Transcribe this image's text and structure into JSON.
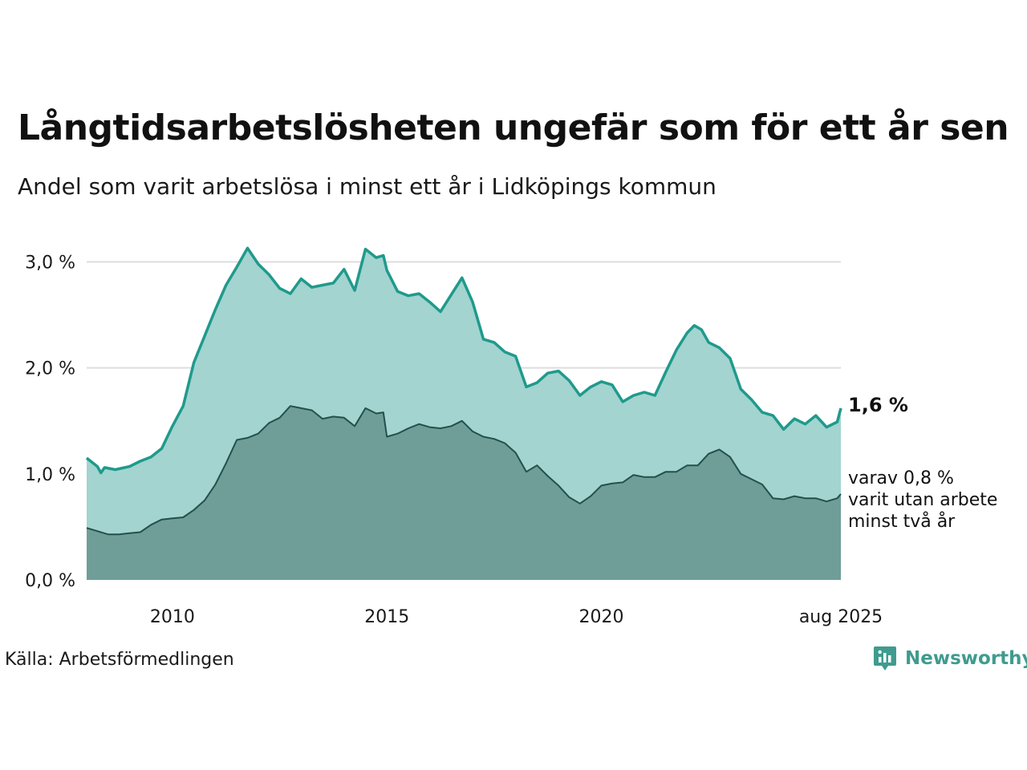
{
  "header": {
    "title": "Långtidsarbetslösheten ungefär som för ett år sen",
    "subtitle": "Andel som varit arbetslösa i minst ett år i Lidköpings kommun"
  },
  "footer": {
    "source": "Källa: Arbetsförmedlingen",
    "logo_text": "Newsworthy"
  },
  "colors": {
    "main_fill": "#a3d4cf",
    "main_line": "#1f9a8c",
    "sub_fill": "#6f9e98",
    "sub_line": "#24504b",
    "grid": "#dddddd",
    "logo": "#3f9b8f"
  },
  "chart_data": {
    "type": "area",
    "title": "Långtidsarbetslösheten ungefär som för ett år sen",
    "subtitle": "Andel som varit arbetslösa i minst ett år i Lidköpings kommun",
    "x_ticks": [
      "2010",
      "2015",
      "2020",
      "aug 2025"
    ],
    "y_ticks": [
      "0,0 %",
      "1,0 %",
      "2,0 %",
      "3,0 %"
    ],
    "ylim": [
      0,
      3.2
    ],
    "xlim": [
      "2008-01",
      "2025-08"
    ],
    "grid": true,
    "end_label_main": "1,6 %",
    "end_label_sub": [
      "varav 0,8 %",
      "varit utan arbete",
      "minst två år"
    ],
    "series": [
      {
        "key": "min_1_ar",
        "points": [
          [
            "2008-01",
            1.15
          ],
          [
            "2008-04",
            1.07
          ],
          [
            "2008-05",
            1.01
          ],
          [
            "2008-06",
            1.06
          ],
          [
            "2008-09",
            1.04
          ],
          [
            "2009-01",
            1.07
          ],
          [
            "2009-04",
            1.12
          ],
          [
            "2009-07",
            1.16
          ],
          [
            "2009-10",
            1.24
          ],
          [
            "2010-01",
            1.45
          ],
          [
            "2010-04",
            1.64
          ],
          [
            "2010-07",
            2.05
          ],
          [
            "2010-10",
            2.3
          ],
          [
            "2011-01",
            2.55
          ],
          [
            "2011-04",
            2.78
          ],
          [
            "2011-07",
            2.95
          ],
          [
            "2011-10",
            3.13
          ],
          [
            "2012-01",
            2.98
          ],
          [
            "2012-04",
            2.88
          ],
          [
            "2012-07",
            2.75
          ],
          [
            "2012-10",
            2.7
          ],
          [
            "2013-01",
            2.84
          ],
          [
            "2013-04",
            2.76
          ],
          [
            "2013-07",
            2.78
          ],
          [
            "2013-10",
            2.8
          ],
          [
            "2014-01",
            2.93
          ],
          [
            "2014-04",
            2.73
          ],
          [
            "2014-07",
            3.12
          ],
          [
            "2014-10",
            3.04
          ],
          [
            "2014-12",
            3.06
          ],
          [
            "2015-01",
            2.92
          ],
          [
            "2015-04",
            2.72
          ],
          [
            "2015-07",
            2.68
          ],
          [
            "2015-10",
            2.7
          ],
          [
            "2016-01",
            2.62
          ],
          [
            "2016-04",
            2.53
          ],
          [
            "2016-07",
            2.69
          ],
          [
            "2016-10",
            2.85
          ],
          [
            "2017-01",
            2.62
          ],
          [
            "2017-04",
            2.27
          ],
          [
            "2017-07",
            2.24
          ],
          [
            "2017-10",
            2.15
          ],
          [
            "2018-01",
            2.11
          ],
          [
            "2018-04",
            1.82
          ],
          [
            "2018-07",
            1.86
          ],
          [
            "2018-10",
            1.95
          ],
          [
            "2019-01",
            1.97
          ],
          [
            "2019-04",
            1.88
          ],
          [
            "2019-07",
            1.74
          ],
          [
            "2019-10",
            1.82
          ],
          [
            "2020-01",
            1.87
          ],
          [
            "2020-04",
            1.84
          ],
          [
            "2020-07",
            1.68
          ],
          [
            "2020-10",
            1.74
          ],
          [
            "2021-01",
            1.77
          ],
          [
            "2021-04",
            1.74
          ],
          [
            "2021-07",
            1.96
          ],
          [
            "2021-10",
            2.17
          ],
          [
            "2022-01",
            2.33
          ],
          [
            "2022-03",
            2.4
          ],
          [
            "2022-05",
            2.36
          ],
          [
            "2022-07",
            2.24
          ],
          [
            "2022-10",
            2.19
          ],
          [
            "2023-01",
            2.09
          ],
          [
            "2023-04",
            1.8
          ],
          [
            "2023-07",
            1.7
          ],
          [
            "2023-10",
            1.58
          ],
          [
            "2024-01",
            1.55
          ],
          [
            "2024-04",
            1.42
          ],
          [
            "2024-07",
            1.52
          ],
          [
            "2024-10",
            1.47
          ],
          [
            "2025-01",
            1.55
          ],
          [
            "2025-04",
            1.44
          ],
          [
            "2025-07",
            1.49
          ],
          [
            "2025-08",
            1.62
          ]
        ]
      },
      {
        "key": "min_2_ar",
        "points": [
          [
            "2008-01",
            0.49
          ],
          [
            "2008-04",
            0.46
          ],
          [
            "2008-07",
            0.43
          ],
          [
            "2008-10",
            0.43
          ],
          [
            "2009-01",
            0.44
          ],
          [
            "2009-04",
            0.45
          ],
          [
            "2009-07",
            0.52
          ],
          [
            "2009-10",
            0.57
          ],
          [
            "2010-01",
            0.58
          ],
          [
            "2010-04",
            0.59
          ],
          [
            "2010-07",
            0.66
          ],
          [
            "2010-10",
            0.75
          ],
          [
            "2011-01",
            0.9
          ],
          [
            "2011-04",
            1.1
          ],
          [
            "2011-07",
            1.32
          ],
          [
            "2011-10",
            1.34
          ],
          [
            "2012-01",
            1.38
          ],
          [
            "2012-04",
            1.48
          ],
          [
            "2012-07",
            1.53
          ],
          [
            "2012-10",
            1.64
          ],
          [
            "2013-01",
            1.62
          ],
          [
            "2013-04",
            1.6
          ],
          [
            "2013-07",
            1.52
          ],
          [
            "2013-10",
            1.54
          ],
          [
            "2014-01",
            1.53
          ],
          [
            "2014-04",
            1.45
          ],
          [
            "2014-07",
            1.62
          ],
          [
            "2014-10",
            1.57
          ],
          [
            "2014-12",
            1.58
          ],
          [
            "2015-01",
            1.35
          ],
          [
            "2015-04",
            1.38
          ],
          [
            "2015-07",
            1.43
          ],
          [
            "2015-10",
            1.47
          ],
          [
            "2016-01",
            1.44
          ],
          [
            "2016-04",
            1.43
          ],
          [
            "2016-07",
            1.45
          ],
          [
            "2016-10",
            1.5
          ],
          [
            "2017-01",
            1.4
          ],
          [
            "2017-04",
            1.35
          ],
          [
            "2017-07",
            1.33
          ],
          [
            "2017-10",
            1.29
          ],
          [
            "2018-01",
            1.2
          ],
          [
            "2018-04",
            1.02
          ],
          [
            "2018-07",
            1.08
          ],
          [
            "2018-10",
            0.98
          ],
          [
            "2019-01",
            0.89
          ],
          [
            "2019-04",
            0.78
          ],
          [
            "2019-07",
            0.72
          ],
          [
            "2019-10",
            0.79
          ],
          [
            "2020-01",
            0.89
          ],
          [
            "2020-04",
            0.91
          ],
          [
            "2020-07",
            0.92
          ],
          [
            "2020-10",
            0.99
          ],
          [
            "2021-01",
            0.97
          ],
          [
            "2021-04",
            0.97
          ],
          [
            "2021-07",
            1.02
          ],
          [
            "2021-10",
            1.02
          ],
          [
            "2022-01",
            1.08
          ],
          [
            "2022-04",
            1.08
          ],
          [
            "2022-07",
            1.19
          ],
          [
            "2022-10",
            1.23
          ],
          [
            "2023-01",
            1.16
          ],
          [
            "2023-04",
            1.0
          ],
          [
            "2023-07",
            0.95
          ],
          [
            "2023-10",
            0.9
          ],
          [
            "2024-01",
            0.77
          ],
          [
            "2024-04",
            0.76
          ],
          [
            "2024-07",
            0.79
          ],
          [
            "2024-10",
            0.77
          ],
          [
            "2025-01",
            0.77
          ],
          [
            "2025-04",
            0.74
          ],
          [
            "2025-07",
            0.77
          ],
          [
            "2025-08",
            0.81
          ]
        ]
      }
    ]
  }
}
